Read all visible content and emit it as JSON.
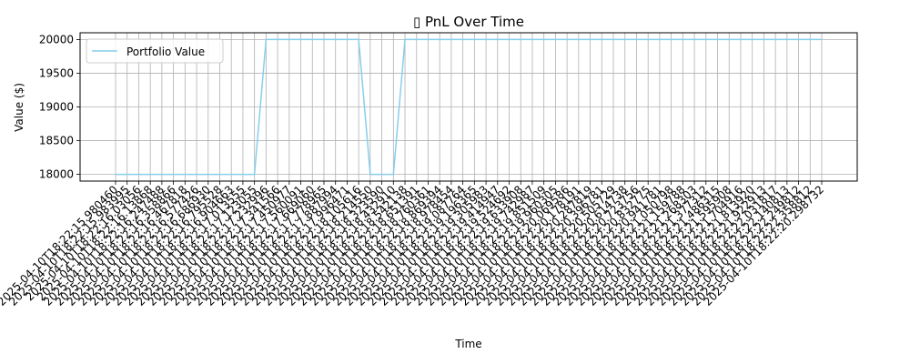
{
  "chart_data": {
    "type": "line",
    "title": "▯ PnL Over Time",
    "xlabel": "Time",
    "ylabel": "Value ($)",
    "ylim": [
      17900,
      20100
    ],
    "yticks": [
      18000,
      18500,
      19000,
      19500,
      20000
    ],
    "grid": true,
    "legend": "top-left",
    "colors": {
      "line": "#87ceeb",
      "grid": "#b0b0b0",
      "axis": "#000000"
    },
    "x": [
      "2025-04-10T18:22:15.980460",
      "2025-04-10T18:22:15.983995",
      "2025-04-10T18:22:16.03056",
      "2025-04-10T18:22:16.13868",
      "2025-04-10T18:22:16.247488",
      "2025-04-10T18:22:16.358866",
      "2025-04-10T18:22:16.467818",
      "2025-04-10T18:22:16.577426",
      "2025-04-10T18:22:16.686930",
      "2025-04-10T18:22:16.795528",
      "2025-04-10T18:22:16.904663",
      "2025-04-10T18:22:17.013555",
      "2025-04-10T18:22:17.123055",
      "2025-04-10T18:22:17.232996",
      "2025-04-10T18:22:17.341566",
      "2025-04-10T18:22:17.450977",
      "2025-04-10T18:22:17.560091",
      "2025-04-10T18:22:17.669060",
      "2025-04-10T18:22:17.778965",
      "2025-04-10T18:22:17.887994",
      "2025-04-10T18:22:17.996471",
      "2025-04-10T18:22:18.105616",
      "2025-04-10T18:22:18.214550",
      "2025-04-10T18:22:18.323590",
      "2025-04-10T18:22:18.432910",
      "2025-04-10T18:22:18.542138",
      "2025-04-10T18:22:18.651391",
      "2025-04-10T18:22:18.760361",
      "2025-04-10T18:22:18.869394",
      "2025-04-10T18:22:18.978454",
      "2025-04-10T18:22:19.087764",
      "2025-04-10T18:22:19.196365",
      "2025-04-10T18:22:19.305983",
      "2025-04-10T18:22:19.414947",
      "2025-04-10T18:22:19.524692",
      "2025-04-10T18:22:19.633908",
      "2025-04-10T18:22:19.742987",
      "2025-04-10T18:22:19.851509",
      "2025-04-10T18:22:19.960305",
      "2025-04-10T18:22:20.069586",
      "2025-04-10T18:22:20.178191",
      "2025-04-10T18:22:20.287819",
      "2025-04-10T18:22:20.396781",
      "2025-04-10T18:22:20.505729",
      "2025-04-10T18:22:20.614738",
      "2025-04-10T18:22:20.723756",
      "2025-04-10T18:22:20.832775",
      "2025-04-10T18:22:20.941781",
      "2025-04-10T18:22:21.050798",
      "2025-04-10T18:22:21.159788",
      "2025-04-10T18:22:21.268303",
      "2025-04-10T18:22:21.377312",
      "2025-04-10T18:22:21.486315",
      "2025-04-10T18:22:21.595908",
      "2025-04-10T18:22:21.704916",
      "2025-04-10T18:22:21.813920",
      "2025-04-10T18:22:21.922913",
      "2025-04-10T18:22:22.031817",
      "2025-04-10T18:22:22.140813",
      "2025-04-10T18:22:22.249812",
      "2025-04-10T18:22:22.358812",
      "2025-04-10T18:22:20.298732"
    ],
    "series": [
      {
        "name": "Portfolio Value",
        "values": [
          18000,
          18000,
          18000,
          18000,
          18000,
          18000,
          18000,
          18000,
          18000,
          18000,
          18000,
          18000,
          18000,
          20000,
          20000,
          20000,
          20000,
          20000,
          20000,
          20000,
          20000,
          20000,
          18000,
          18000,
          18000,
          20000,
          20000,
          20000,
          20000,
          20000,
          20000,
          20000,
          20000,
          20000,
          20000,
          20000,
          20000,
          20000,
          20000,
          20000,
          20000,
          20000,
          20000,
          20000,
          20000,
          20000,
          20000,
          20000,
          20000,
          20000,
          20000,
          20000,
          20000,
          20000,
          20000,
          20000,
          20000,
          20000,
          20000,
          20000,
          20000,
          20000
        ]
      }
    ]
  }
}
